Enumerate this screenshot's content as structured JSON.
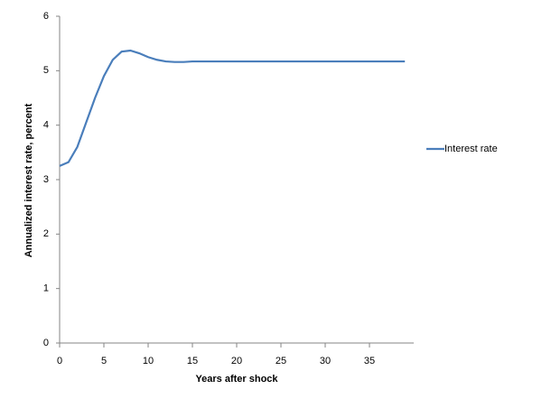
{
  "chart_data": {
    "type": "line",
    "x_label": "Years after shock",
    "y_label": "Annualized interest rate, percent",
    "x": [
      0,
      1,
      2,
      3,
      4,
      5,
      6,
      7,
      8,
      9,
      10,
      11,
      12,
      13,
      14,
      15,
      16,
      17,
      18,
      19,
      20,
      21,
      22,
      23,
      24,
      25,
      26,
      27,
      28,
      29,
      30,
      31,
      32,
      33,
      34,
      35,
      36,
      37,
      38,
      39
    ],
    "series": [
      {
        "name": "Interest rate",
        "color": "#4a7ebb",
        "values": [
          3.25,
          3.32,
          3.6,
          4.05,
          4.5,
          4.9,
          5.2,
          5.35,
          5.37,
          5.32,
          5.25,
          5.2,
          5.17,
          5.16,
          5.16,
          5.17,
          5.17,
          5.17,
          5.17,
          5.17,
          5.17,
          5.17,
          5.17,
          5.17,
          5.17,
          5.17,
          5.17,
          5.17,
          5.17,
          5.17,
          5.17,
          5.17,
          5.17,
          5.17,
          5.17,
          5.17,
          5.17,
          5.17,
          5.17,
          5.17
        ]
      }
    ],
    "xlim": [
      0,
      40
    ],
    "xticks": [
      0,
      5,
      10,
      15,
      20,
      25,
      30,
      35
    ],
    "ylim": [
      0,
      6
    ],
    "yticks": [
      0,
      1,
      2,
      3,
      4,
      5,
      6
    ],
    "legend": "right"
  }
}
